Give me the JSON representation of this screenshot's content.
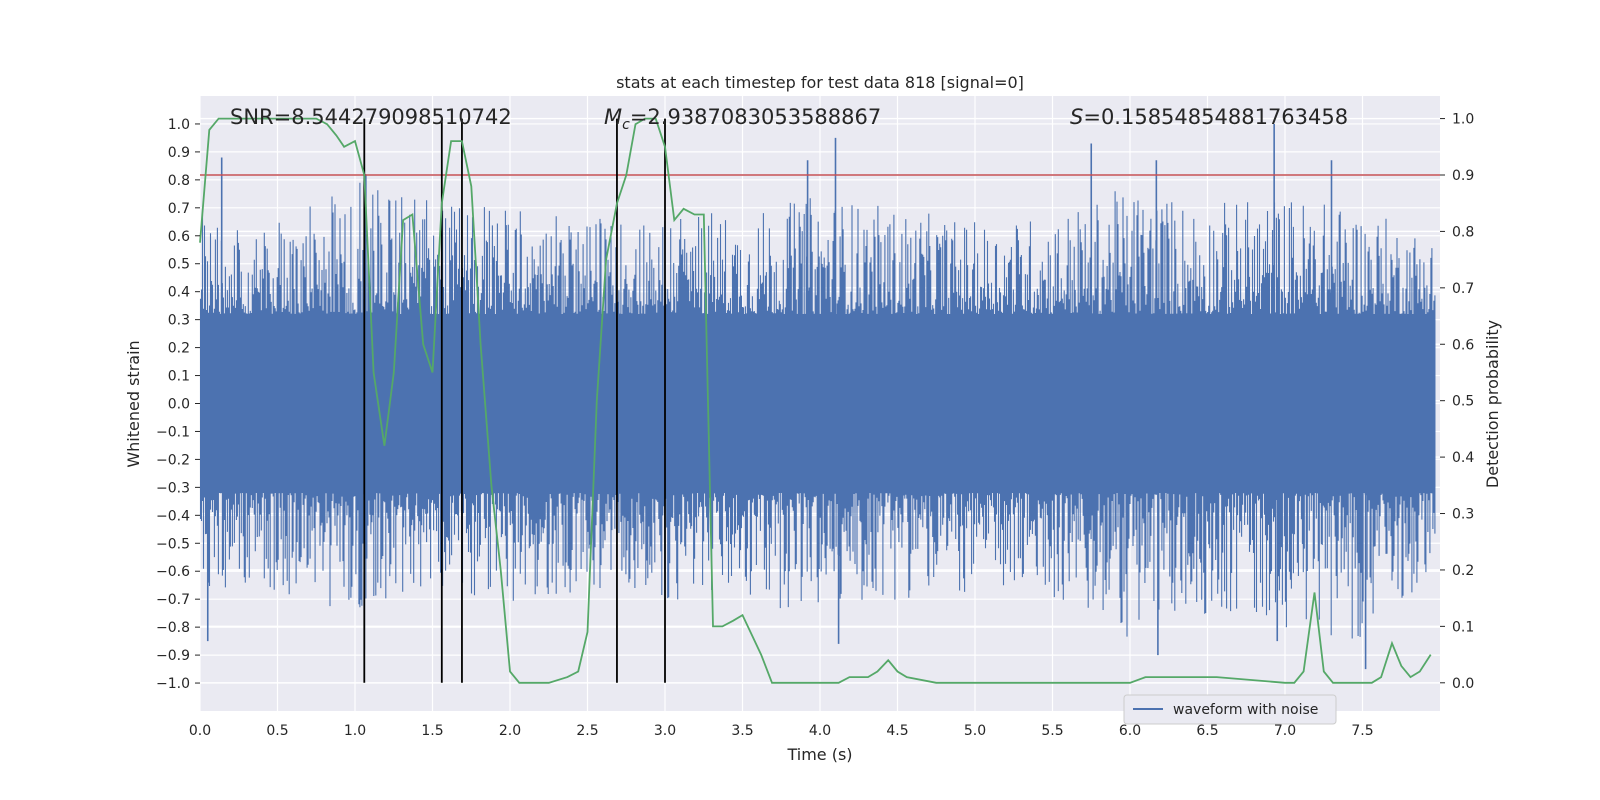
{
  "chart_data": {
    "type": "line",
    "title": "stats at each timestep for test data 818 [signal=0]",
    "xlabel": "Time (s)",
    "ylabel": "Whitened strain",
    "y2label": "Detection probability",
    "xlim": [
      0.0,
      8.0
    ],
    "ylim": [
      -1.1,
      1.1
    ],
    "y2lim": [
      -0.05,
      1.04
    ],
    "x_ticks": [
      0.0,
      0.5,
      1.0,
      1.5,
      2.0,
      2.5,
      3.0,
      3.5,
      4.0,
      4.5,
      5.0,
      5.5,
      6.0,
      6.5,
      7.0,
      7.5
    ],
    "x_tick_labels": [
      "0.0",
      "0.5",
      "1.0",
      "1.5",
      "2.0",
      "2.5",
      "3.0",
      "3.5",
      "4.0",
      "4.5",
      "5.0",
      "5.5",
      "6.0",
      "6.5",
      "7.0",
      "7.5"
    ],
    "y_ticks": [
      -1.0,
      -0.9,
      -0.8,
      -0.7,
      -0.6,
      -0.5,
      -0.4,
      -0.3,
      -0.2,
      -0.1,
      0.0,
      0.1,
      0.2,
      0.3,
      0.4,
      0.5,
      0.6,
      0.7,
      0.8,
      0.9,
      1.0
    ],
    "y_tick_labels": [
      "−1.0",
      "−0.9",
      "−0.8",
      "−0.7",
      "−0.6",
      "−0.5",
      "−0.4",
      "−0.3",
      "−0.2",
      "−0.1",
      "0.0",
      "0.1",
      "0.2",
      "0.3",
      "0.4",
      "0.5",
      "0.6",
      "0.7",
      "0.8",
      "0.9",
      "1.0"
    ],
    "y2_ticks": [
      0.0,
      0.1,
      0.2,
      0.3,
      0.4,
      0.5,
      0.6,
      0.7,
      0.8,
      0.9,
      1.0
    ],
    "y2_tick_labels": [
      "0.0",
      "0.1",
      "0.2",
      "0.3",
      "0.4",
      "0.5",
      "0.6",
      "0.7",
      "0.8",
      "0.9",
      "1.0"
    ],
    "grid": true,
    "legend": {
      "entries": [
        "waveform with noise"
      ],
      "placement": "lower right"
    },
    "stats_text": {
      "snr": "SNR=8.544279098510742",
      "mc_symbol": "M",
      "mc_subscript": "c",
      "mc_value": "=2.9387083053588867",
      "s_symbol": "S",
      "s_value": "=0.15854854881763458"
    },
    "threshold_line": {
      "axis": "y2",
      "value": 0.9,
      "color": "#c44e52"
    },
    "vertical_markers": {
      "x": [
        1.06,
        1.56,
        1.69,
        2.69,
        3.0
      ],
      "ymin": 0.0,
      "ymax": 1.0,
      "axis": "y2",
      "color": "#000000"
    },
    "waveform": {
      "name": "waveform with noise",
      "color": "#4c72b0",
      "description": "dense whitened strain samples",
      "envelope_x": [
        0.0,
        0.5,
        1.0,
        1.5,
        2.0,
        2.5,
        3.0,
        3.5,
        4.0,
        4.5,
        5.0,
        5.5,
        6.0,
        6.5,
        7.0,
        7.5,
        7.97
      ],
      "envelope_upper": [
        0.7,
        0.65,
        0.8,
        0.75,
        0.7,
        0.65,
        0.72,
        0.68,
        0.75,
        0.7,
        0.65,
        0.68,
        0.78,
        0.72,
        0.75,
        0.7,
        0.6
      ],
      "envelope_lower": [
        -0.65,
        -0.7,
        -0.75,
        -0.65,
        -0.72,
        -0.68,
        -0.7,
        -0.72,
        -0.75,
        -0.7,
        -0.68,
        -0.7,
        -0.85,
        -0.75,
        -0.8,
        -0.85,
        -0.6
      ],
      "peaks": [
        {
          "x": 0.14,
          "y": 0.88
        },
        {
          "x": 1.07,
          "y": 0.82
        },
        {
          "x": 4.1,
          "y": 0.95
        },
        {
          "x": 5.75,
          "y": 0.93
        },
        {
          "x": 6.93,
          "y": 1.0
        },
        {
          "x": 3.92,
          "y": 0.87
        },
        {
          "x": 6.17,
          "y": 0.87
        },
        {
          "x": 7.3,
          "y": 0.87
        },
        {
          "x": 0.05,
          "y": -0.85
        },
        {
          "x": 1.06,
          "y": -0.88
        },
        {
          "x": 4.12,
          "y": -0.86
        },
        {
          "x": 6.18,
          "y": -0.9
        },
        {
          "x": 6.95,
          "y": -0.85
        },
        {
          "x": 7.52,
          "y": -0.95
        }
      ]
    },
    "detection_probability": {
      "color": "#55a868",
      "x": [
        0.0,
        0.06,
        0.12,
        0.25,
        0.5,
        0.75,
        0.82,
        0.88,
        0.93,
        1.0,
        1.06,
        1.12,
        1.19,
        1.25,
        1.31,
        1.37,
        1.44,
        1.5,
        1.56,
        1.62,
        1.69,
        1.75,
        1.81,
        1.88,
        1.94,
        2.0,
        2.06,
        2.12,
        2.25,
        2.37,
        2.44,
        2.5,
        2.56,
        2.62,
        2.69,
        2.75,
        2.81,
        2.87,
        2.94,
        3.0,
        3.06,
        3.12,
        3.19,
        3.25,
        3.31,
        3.37,
        3.44,
        3.5,
        3.62,
        3.69,
        3.75,
        4.0,
        4.12,
        4.19,
        4.25,
        4.31,
        4.37,
        4.44,
        4.5,
        4.56,
        4.75,
        5.0,
        5.5,
        6.0,
        6.1,
        6.25,
        6.31,
        6.5,
        6.56,
        7.0,
        7.06,
        7.12,
        7.19,
        7.25,
        7.31,
        7.44,
        7.5,
        7.56,
        7.62,
        7.69,
        7.75,
        7.81,
        7.87,
        7.94
      ],
      "y": [
        0.78,
        0.98,
        1.0,
        1.0,
        1.0,
        1.0,
        0.99,
        0.97,
        0.95,
        0.96,
        0.9,
        0.55,
        0.42,
        0.55,
        0.82,
        0.83,
        0.6,
        0.55,
        0.85,
        0.96,
        0.96,
        0.88,
        0.6,
        0.35,
        0.2,
        0.02,
        0.0,
        0.0,
        0.0,
        0.01,
        0.02,
        0.09,
        0.5,
        0.75,
        0.85,
        0.9,
        0.99,
        1.0,
        1.0,
        0.95,
        0.82,
        0.84,
        0.83,
        0.83,
        0.1,
        0.1,
        0.11,
        0.12,
        0.05,
        0.0,
        0.0,
        0.0,
        0.0,
        0.01,
        0.01,
        0.01,
        0.02,
        0.04,
        0.02,
        0.01,
        0.0,
        0.0,
        0.0,
        0.0,
        0.01,
        0.01,
        0.01,
        0.01,
        0.01,
        0.0,
        0.0,
        0.02,
        0.16,
        0.02,
        0.0,
        0.0,
        0.0,
        0.0,
        0.01,
        0.07,
        0.03,
        0.01,
        0.02,
        0.05
      ]
    }
  }
}
